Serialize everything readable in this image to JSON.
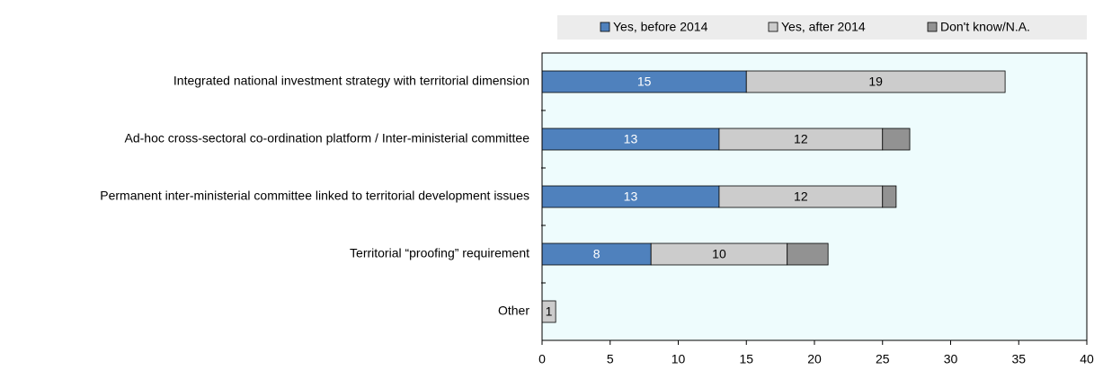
{
  "chart_data": {
    "type": "stacked_barh",
    "categories": [
      "Integrated national investment strategy with territorial dimension",
      "Ad-hoc cross-sectoral co-ordination platform / Inter-ministerial committee",
      "Permanent inter-ministerial committee linked to territorial development issues",
      "Territorial “proofing” requirement",
      "Other"
    ],
    "series": [
      {
        "name": "Yes, before 2014",
        "color": "#4f81bd",
        "label_color": "#ffffff",
        "show_labels": true,
        "values": [
          15,
          13,
          13,
          8,
          null
        ]
      },
      {
        "name": "Yes, after 2014",
        "color": "#cccccc",
        "label_color": "#000000",
        "show_labels": true,
        "values": [
          19,
          12,
          12,
          10,
          1
        ]
      },
      {
        "name": "Don't know/N.A.",
        "color": "#929292",
        "label_color": "#000000",
        "show_labels": false,
        "values": [
          null,
          2,
          1,
          3,
          null
        ]
      }
    ],
    "xlim": [
      0,
      40
    ],
    "xticks": [
      0,
      5,
      10,
      15,
      20,
      25,
      30,
      35,
      40
    ],
    "plot_background": "#eefcfd",
    "legend": "top"
  }
}
